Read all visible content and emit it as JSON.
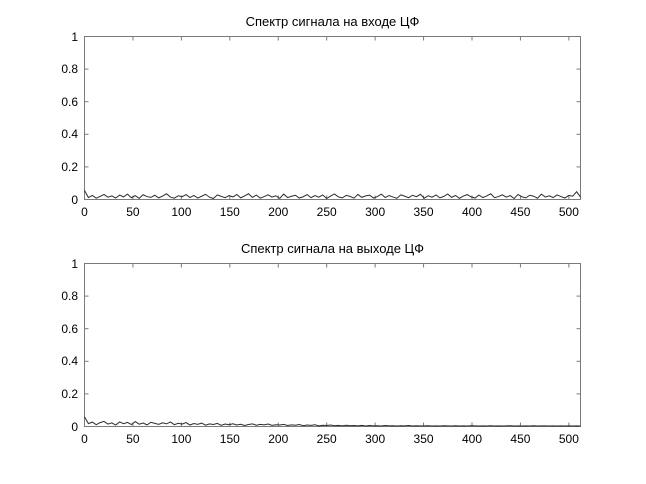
{
  "figure": {
    "background": "#ffffff"
  },
  "colors": {
    "axis": "#7a7a7a",
    "line": "#2b2b2b",
    "text": "#000000",
    "background": "#ffffff"
  },
  "chart_data": [
    {
      "type": "line",
      "title": "Спектр сигнала на входе ЦФ",
      "xlabel": "",
      "ylabel": "",
      "xlim": [
        0,
        512
      ],
      "ylim": [
        0,
        1
      ],
      "xticks": [
        0,
        50,
        100,
        150,
        200,
        250,
        300,
        350,
        400,
        450,
        500
      ],
      "yticks": [
        0,
        0.2,
        0.4,
        0.6,
        0.8,
        1
      ],
      "grid": false,
      "legend": "none",
      "description": "Flat noisy spectrum near zero amplitude with small spikes at both edges",
      "values": [
        0.055,
        0.012,
        0.025,
        0.008,
        0.019,
        0.031,
        0.014,
        0.022,
        0.009,
        0.027,
        0.016,
        0.033,
        0.011,
        0.024,
        0.007,
        0.029,
        0.018,
        0.013,
        0.026,
        0.01,
        0.021,
        0.035,
        0.015,
        0.008,
        0.023,
        0.017,
        0.03,
        0.012,
        0.025,
        0.009,
        0.02,
        0.032,
        0.014,
        0.006,
        0.028,
        0.019,
        0.011,
        0.024,
        0.016,
        0.031,
        0.01,
        0.022,
        0.035,
        0.013,
        0.027,
        0.008,
        0.018,
        0.029,
        0.015,
        0.023,
        0.007,
        0.033,
        0.012,
        0.02,
        0.026,
        0.009,
        0.017,
        0.03,
        0.011,
        0.024,
        0.014,
        0.028,
        0.006,
        0.021,
        0.034,
        0.016,
        0.01,
        0.025,
        0.019,
        0.008,
        0.031,
        0.013,
        0.022,
        0.027,
        0.009,
        0.018,
        0.033,
        0.012,
        0.024,
        0.015,
        0.007,
        0.029,
        0.02,
        0.011,
        0.026,
        0.017,
        0.032,
        0.008,
        0.023,
        0.014,
        0.028,
        0.01,
        0.019,
        0.034,
        0.013,
        0.025,
        0.007,
        0.021,
        0.03,
        0.016,
        0.009,
        0.027,
        0.012,
        0.022,
        0.035,
        0.011,
        0.018,
        0.029,
        0.014,
        0.024,
        0.006,
        0.031,
        0.017,
        0.01,
        0.026,
        0.02,
        0.008,
        0.033,
        0.015,
        0.023,
        0.012,
        0.028,
        0.018,
        0.009,
        0.025,
        0.02,
        0.048,
        0.015
      ]
    },
    {
      "type": "line",
      "title": "Спектр сигнала на выходе ЦФ",
      "xlabel": "",
      "ylabel": "",
      "xlim": [
        0,
        512
      ],
      "ylim": [
        0,
        1
      ],
      "xticks": [
        0,
        50,
        100,
        150,
        200,
        250,
        300,
        350,
        400,
        450,
        500
      ],
      "yticks": [
        0,
        0.2,
        0.4,
        0.6,
        0.8,
        1
      ],
      "grid": false,
      "legend": "none",
      "description": "Low-pass filtered spectrum: small noise at low frequencies decaying to near-flat zero line at higher frequencies, spike at left edge",
      "values": [
        0.06,
        0.018,
        0.027,
        0.011,
        0.024,
        0.031,
        0.015,
        0.022,
        0.009,
        0.028,
        0.017,
        0.025,
        0.012,
        0.03,
        0.014,
        0.021,
        0.01,
        0.026,
        0.019,
        0.013,
        0.023,
        0.016,
        0.028,
        0.011,
        0.02,
        0.015,
        0.024,
        0.009,
        0.018,
        0.013,
        0.021,
        0.008,
        0.016,
        0.012,
        0.019,
        0.007,
        0.015,
        0.011,
        0.017,
        0.009,
        0.014,
        0.006,
        0.012,
        0.016,
        0.008,
        0.013,
        0.01,
        0.015,
        0.007,
        0.011,
        0.009,
        0.013,
        0.006,
        0.01,
        0.008,
        0.012,
        0.005,
        0.009,
        0.007,
        0.011,
        0.004,
        0.008,
        0.006,
        0.009,
        0.005,
        0.007,
        0.004,
        0.008,
        0.005,
        0.006,
        0.004,
        0.007,
        0.003,
        0.006,
        0.004,
        0.005,
        0.003,
        0.006,
        0.004,
        0.005,
        0.003,
        0.005,
        0.004,
        0.006,
        0.003,
        0.005,
        0.003,
        0.004,
        0.005,
        0.003,
        0.004,
        0.003,
        0.005,
        0.004,
        0.003,
        0.005,
        0.003,
        0.004,
        0.003,
        0.005,
        0.004,
        0.003,
        0.004,
        0.003,
        0.005,
        0.003,
        0.004,
        0.003,
        0.004,
        0.005,
        0.003,
        0.004,
        0.003,
        0.004,
        0.003,
        0.005,
        0.003,
        0.004,
        0.004,
        0.003,
        0.004,
        0.003,
        0.004,
        0.003,
        0.004,
        0.003,
        0.004,
        0.003
      ]
    }
  ]
}
